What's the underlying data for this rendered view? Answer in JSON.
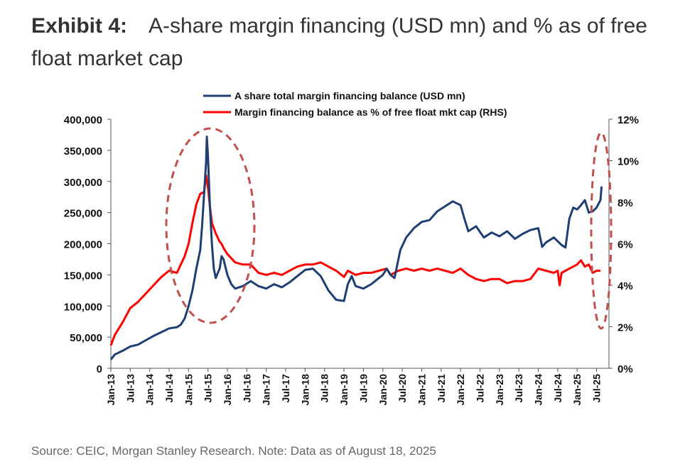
{
  "exhibit": {
    "label": "Exhibit 4:",
    "title": "A-share margin financing (USD mn) and % as of free float market cap"
  },
  "source": "Source: CEIC, Morgan Stanley Research. Note: Data as of August 18, 2025",
  "colors": {
    "balance": "#1f3f73",
    "pct": "#ff0000",
    "highlight": "#c0504d"
  },
  "chart_data": {
    "type": "line",
    "title": "A-share margin financing (USD mn) and % as of free float market cap",
    "x_tick_labels": [
      "Jan-13",
      "Jul-13",
      "Jan-14",
      "Jul-14",
      "Jan-15",
      "Jul-15",
      "Jan-16",
      "Jul-16",
      "Jan-17",
      "Jul-17",
      "Jan-18",
      "Jul-18",
      "Jan-19",
      "Jul-19",
      "Jan-20",
      "Jul-20",
      "Jan-21",
      "Jul-21",
      "Jan-22",
      "Jul-22",
      "Jan-23",
      "Jul-23",
      "Jan-24",
      "Jul-24",
      "Jan-25",
      "Jul-25"
    ],
    "y_left": {
      "min": 0,
      "max": 400000,
      "ticks": [
        0,
        50000,
        100000,
        150000,
        200000,
        250000,
        300000,
        350000,
        400000
      ],
      "tick_labels": [
        "0",
        "50,000",
        "100,000",
        "150,000",
        "200,000",
        "250,000",
        "300,000",
        "350,000",
        "400,000"
      ]
    },
    "y_right": {
      "min": 0,
      "max": 12,
      "ticks": [
        0,
        2,
        4,
        6,
        8,
        10,
        12
      ],
      "tick_labels": [
        "0%",
        "2%",
        "4%",
        "6%",
        "8%",
        "10%",
        "12%"
      ]
    },
    "series": [
      {
        "name": "A share total margin financing balance (USD mn)",
        "axis": "left",
        "points": [
          [
            2013.0,
            14000
          ],
          [
            2013.1,
            22000
          ],
          [
            2013.3,
            28000
          ],
          [
            2013.5,
            35000
          ],
          [
            2013.7,
            38000
          ],
          [
            2013.9,
            45000
          ],
          [
            2014.1,
            52000
          ],
          [
            2014.3,
            58000
          ],
          [
            2014.5,
            64000
          ],
          [
            2014.7,
            66000
          ],
          [
            2014.8,
            70000
          ],
          [
            2014.9,
            80000
          ],
          [
            2015.0,
            100000
          ],
          [
            2015.1,
            125000
          ],
          [
            2015.2,
            160000
          ],
          [
            2015.3,
            190000
          ],
          [
            2015.35,
            230000
          ],
          [
            2015.4,
            280000
          ],
          [
            2015.45,
            330000
          ],
          [
            2015.47,
            372000
          ],
          [
            2015.5,
            340000
          ],
          [
            2015.55,
            260000
          ],
          [
            2015.6,
            200000
          ],
          [
            2015.65,
            160000
          ],
          [
            2015.7,
            145000
          ],
          [
            2015.8,
            160000
          ],
          [
            2015.85,
            180000
          ],
          [
            2015.9,
            175000
          ],
          [
            2016.0,
            150000
          ],
          [
            2016.1,
            135000
          ],
          [
            2016.2,
            128000
          ],
          [
            2016.4,
            132000
          ],
          [
            2016.6,
            140000
          ],
          [
            2016.8,
            132000
          ],
          [
            2017.0,
            128000
          ],
          [
            2017.2,
            135000
          ],
          [
            2017.4,
            130000
          ],
          [
            2017.6,
            138000
          ],
          [
            2017.8,
            148000
          ],
          [
            2018.0,
            158000
          ],
          [
            2018.2,
            160000
          ],
          [
            2018.4,
            148000
          ],
          [
            2018.6,
            125000
          ],
          [
            2018.8,
            110000
          ],
          [
            2019.0,
            108000
          ],
          [
            2019.1,
            135000
          ],
          [
            2019.2,
            148000
          ],
          [
            2019.3,
            132000
          ],
          [
            2019.5,
            128000
          ],
          [
            2019.7,
            135000
          ],
          [
            2019.9,
            145000
          ],
          [
            2020.0,
            150000
          ],
          [
            2020.1,
            160000
          ],
          [
            2020.2,
            150000
          ],
          [
            2020.3,
            145000
          ],
          [
            2020.45,
            190000
          ],
          [
            2020.6,
            210000
          ],
          [
            2020.8,
            225000
          ],
          [
            2021.0,
            235000
          ],
          [
            2021.2,
            238000
          ],
          [
            2021.4,
            252000
          ],
          [
            2021.6,
            260000
          ],
          [
            2021.8,
            268000
          ],
          [
            2022.0,
            262000
          ],
          [
            2022.1,
            240000
          ],
          [
            2022.2,
            220000
          ],
          [
            2022.4,
            228000
          ],
          [
            2022.6,
            210000
          ],
          [
            2022.8,
            218000
          ],
          [
            2023.0,
            212000
          ],
          [
            2023.2,
            220000
          ],
          [
            2023.4,
            208000
          ],
          [
            2023.6,
            216000
          ],
          [
            2023.8,
            222000
          ],
          [
            2024.0,
            225000
          ],
          [
            2024.1,
            195000
          ],
          [
            2024.2,
            202000
          ],
          [
            2024.4,
            210000
          ],
          [
            2024.6,
            198000
          ],
          [
            2024.7,
            194000
          ],
          [
            2024.8,
            240000
          ],
          [
            2024.9,
            258000
          ],
          [
            2025.0,
            255000
          ],
          [
            2025.1,
            262000
          ],
          [
            2025.2,
            270000
          ],
          [
            2025.3,
            250000
          ],
          [
            2025.4,
            252000
          ],
          [
            2025.5,
            258000
          ],
          [
            2025.6,
            270000
          ],
          [
            2025.63,
            292000
          ]
        ]
      },
      {
        "name": "Margin financing balance as % of free float mkt cap (RHS)",
        "axis": "right",
        "points": [
          [
            2013.0,
            1.1
          ],
          [
            2013.1,
            1.6
          ],
          [
            2013.3,
            2.2
          ],
          [
            2013.5,
            2.9
          ],
          [
            2013.7,
            3.2
          ],
          [
            2013.9,
            3.6
          ],
          [
            2014.1,
            4.0
          ],
          [
            2014.3,
            4.4
          ],
          [
            2014.5,
            4.7
          ],
          [
            2014.7,
            4.6
          ],
          [
            2014.9,
            5.4
          ],
          [
            2015.0,
            6.0
          ],
          [
            2015.1,
            7.0
          ],
          [
            2015.2,
            7.9
          ],
          [
            2015.3,
            8.4
          ],
          [
            2015.4,
            8.5
          ],
          [
            2015.45,
            9.3
          ],
          [
            2015.5,
            8.7
          ],
          [
            2015.55,
            7.8
          ],
          [
            2015.6,
            7.0
          ],
          [
            2015.7,
            6.5
          ],
          [
            2015.8,
            6.1
          ],
          [
            2015.85,
            6.0
          ],
          [
            2015.9,
            5.8
          ],
          [
            2016.0,
            5.5
          ],
          [
            2016.2,
            5.1
          ],
          [
            2016.4,
            5.0
          ],
          [
            2016.6,
            5.0
          ],
          [
            2016.8,
            4.6
          ],
          [
            2017.0,
            4.5
          ],
          [
            2017.2,
            4.6
          ],
          [
            2017.4,
            4.5
          ],
          [
            2017.6,
            4.7
          ],
          [
            2017.8,
            4.9
          ],
          [
            2018.0,
            5.0
          ],
          [
            2018.2,
            5.0
          ],
          [
            2018.4,
            5.1
          ],
          [
            2018.6,
            4.9
          ],
          [
            2018.8,
            4.7
          ],
          [
            2019.0,
            4.4
          ],
          [
            2019.1,
            4.7
          ],
          [
            2019.3,
            4.5
          ],
          [
            2019.5,
            4.6
          ],
          [
            2019.7,
            4.6
          ],
          [
            2019.9,
            4.7
          ],
          [
            2020.1,
            4.8
          ],
          [
            2020.2,
            4.5
          ],
          [
            2020.4,
            4.7
          ],
          [
            2020.6,
            4.8
          ],
          [
            2020.8,
            4.7
          ],
          [
            2021.0,
            4.8
          ],
          [
            2021.2,
            4.7
          ],
          [
            2021.4,
            4.8
          ],
          [
            2021.6,
            4.7
          ],
          [
            2021.8,
            4.6
          ],
          [
            2022.0,
            4.8
          ],
          [
            2022.2,
            4.5
          ],
          [
            2022.4,
            4.3
          ],
          [
            2022.6,
            4.2
          ],
          [
            2022.8,
            4.3
          ],
          [
            2023.0,
            4.3
          ],
          [
            2023.2,
            4.1
          ],
          [
            2023.4,
            4.2
          ],
          [
            2023.6,
            4.2
          ],
          [
            2023.8,
            4.3
          ],
          [
            2024.0,
            4.8
          ],
          [
            2024.2,
            4.7
          ],
          [
            2024.4,
            4.6
          ],
          [
            2024.5,
            4.7
          ],
          [
            2024.55,
            4.0
          ],
          [
            2024.6,
            4.6
          ],
          [
            2024.8,
            4.8
          ],
          [
            2025.0,
            5.0
          ],
          [
            2025.1,
            5.2
          ],
          [
            2025.2,
            4.9
          ],
          [
            2025.3,
            5.0
          ],
          [
            2025.4,
            4.6
          ],
          [
            2025.5,
            4.7
          ],
          [
            2025.6,
            4.7
          ]
        ]
      }
    ],
    "annotations": [
      "dashed ellipse highlighting the 2015 peak",
      "dashed ellipse highlighting the latest 2025 level"
    ]
  }
}
